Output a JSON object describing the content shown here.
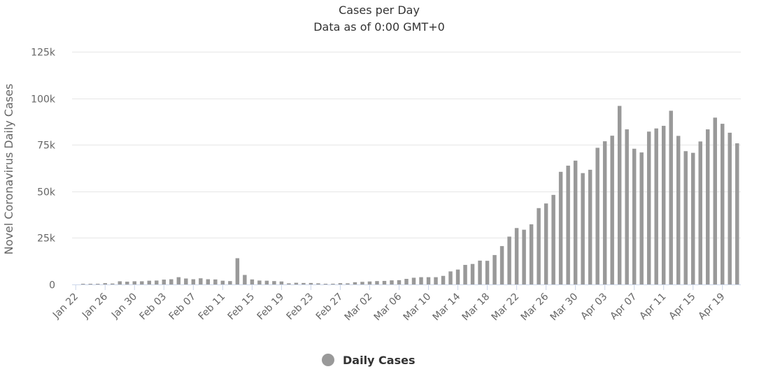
{
  "chart_data": {
    "type": "bar",
    "title": "Cases per Day",
    "subtitle": "Data as of 0:00 GMT+0",
    "xlabel": "",
    "ylabel": "Novel Coronavirus Daily Cases",
    "ylim": [
      0,
      125000
    ],
    "yticks": [
      0,
      25000,
      50000,
      75000,
      100000,
      125000
    ],
    "ytick_labels": [
      "0",
      "25k",
      "50k",
      "75k",
      "100k",
      "125k"
    ],
    "xtick_labels": [
      "Jan 22",
      "Jan 26",
      "Jan 30",
      "Feb 03",
      "Feb 07",
      "Feb 11",
      "Feb 15",
      "Feb 19",
      "Feb 23",
      "Feb 27",
      "Mar 02",
      "Mar 06",
      "Mar 10",
      "Mar 14",
      "Mar 18",
      "Mar 22",
      "Mar 26",
      "Mar 30",
      "Apr 03",
      "Apr 07",
      "Apr 11",
      "Apr 15",
      "Apr 19"
    ],
    "xtick_every": 4,
    "grid": true,
    "legend_position": "bottom-center",
    "series": [
      {
        "name": "Daily Cases",
        "color": "#999999",
        "values": [
          0,
          100,
          250,
          300,
          700,
          500,
          1700,
          1500,
          1700,
          1700,
          2000,
          2100,
          2600,
          2800,
          3900,
          3200,
          2800,
          3300,
          2800,
          2700,
          2000,
          1800,
          14100,
          5100,
          2700,
          2100,
          2000,
          1800,
          1600,
          600,
          900,
          800,
          800,
          600,
          300,
          400,
          700,
          600,
          1200,
          1400,
          1600,
          1800,
          1900,
          2200,
          2300,
          3000,
          3600,
          3900,
          3900,
          3900,
          4600,
          7000,
          8000,
          10500,
          11000,
          12800,
          12700,
          15800,
          20600,
          25700,
          30300,
          29400,
          32300,
          41000,
          43500,
          48100,
          60500,
          63800,
          66500,
          59800,
          61600,
          73400,
          76900,
          79900,
          95900,
          83300,
          72900,
          70900,
          82100,
          83800,
          85200,
          93300,
          79800,
          71600,
          70700,
          76800,
          83300,
          89600,
          86300,
          81500,
          75800
        ]
      }
    ]
  }
}
